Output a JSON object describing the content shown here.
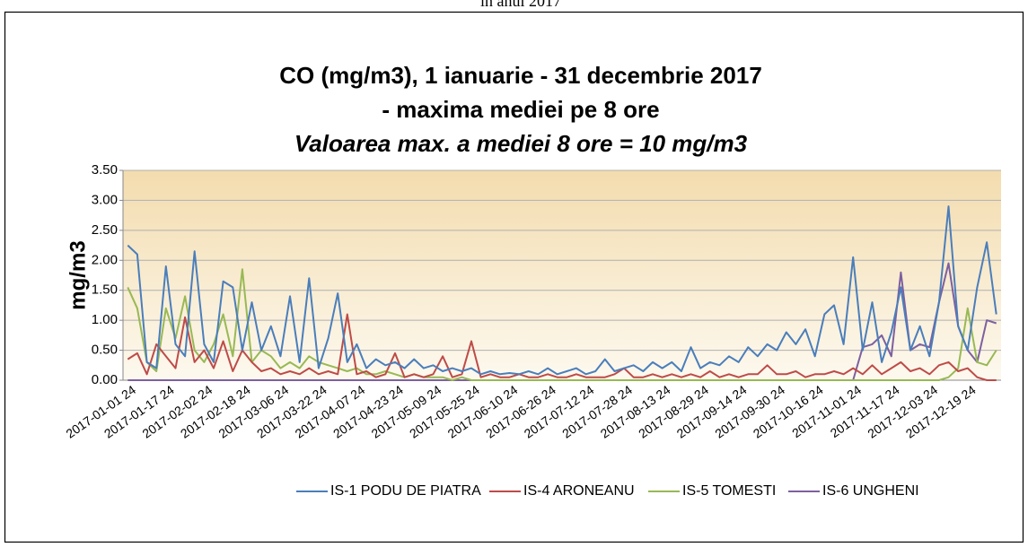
{
  "caption": "în anul 2017",
  "chart_data": {
    "type": "line",
    "title": "CO (mg/m3), 1 ianuarie - 31 decembrie 2017",
    "subtitle": "- maxima mediei pe 8 ore",
    "annotation": "Valoarea max. a mediei 8 ore = 10 mg/m3",
    "y_label": "mg/m3",
    "categories": [
      "2017-01-01 24",
      null,
      null,
      null,
      "2017-01-17 24",
      null,
      null,
      null,
      "2017-02-02 24",
      null,
      null,
      null,
      "2017-02-18 24",
      null,
      null,
      null,
      "2017-03-06 24",
      null,
      null,
      null,
      "2017-03-22 24",
      null,
      null,
      null,
      "2017-04-07 24",
      null,
      null,
      null,
      "2017-04-23 24",
      null,
      null,
      null,
      "2017-05-09 24",
      null,
      null,
      null,
      "2017-05-25 24",
      null,
      null,
      null,
      "2017-06-10 24",
      null,
      null,
      null,
      "2017-06-26 24",
      null,
      null,
      null,
      "2017-07-12 24",
      null,
      null,
      null,
      "2017-07-28 24",
      null,
      null,
      null,
      "2017-08-13 24",
      null,
      null,
      null,
      "2017-08-29 24",
      null,
      null,
      null,
      "2017-09-14 24",
      null,
      null,
      null,
      "2017-09-30 24",
      null,
      null,
      null,
      "2017-10-16 24",
      null,
      null,
      null,
      "2017-11-01 24",
      null,
      null,
      null,
      "2017-11-17 24",
      null,
      null,
      null,
      "2017-12-03 24",
      null,
      null,
      null,
      "2017-12-19 24",
      null,
      null,
      null
    ],
    "series": [
      {
        "name": "IS-1 PODU DE PIATRA",
        "color": "#4a7ebb",
        "values": [
          2.25,
          2.1,
          0.3,
          0.2,
          1.9,
          0.6,
          0.4,
          2.15,
          0.6,
          0.3,
          1.65,
          1.55,
          0.5,
          1.3,
          0.5,
          0.9,
          0.4,
          1.4,
          0.3,
          1.7,
          0.2,
          0.7,
          1.45,
          0.3,
          0.6,
          0.2,
          0.35,
          0.25,
          0.3,
          0.2,
          0.35,
          0.2,
          0.25,
          0.15,
          0.2,
          0.15,
          0.2,
          0.1,
          0.15,
          0.1,
          0.12,
          0.1,
          0.15,
          0.1,
          0.2,
          0.1,
          0.15,
          0.2,
          0.1,
          0.15,
          0.35,
          0.15,
          0.2,
          0.25,
          0.15,
          0.3,
          0.2,
          0.3,
          0.15,
          0.55,
          0.2,
          0.3,
          0.25,
          0.4,
          0.3,
          0.55,
          0.4,
          0.6,
          0.5,
          0.8,
          0.6,
          0.85,
          0.4,
          1.1,
          1.25,
          0.6,
          2.05,
          0.5,
          1.3,
          0.3,
          0.8,
          1.55,
          0.5,
          0.9,
          0.4,
          1.3,
          2.9,
          0.9,
          0.5,
          1.55,
          2.3,
          1.1
        ]
      },
      {
        "name": "IS-4 ARONEANU",
        "color": "#be4b48",
        "values": [
          0.35,
          0.45,
          0.1,
          0.6,
          0.4,
          0.2,
          1.05,
          0.3,
          0.5,
          0.2,
          0.65,
          0.15,
          0.5,
          0.3,
          0.15,
          0.2,
          0.1,
          0.15,
          0.1,
          0.2,
          0.1,
          0.15,
          0.1,
          1.1,
          0.1,
          0.15,
          0.05,
          0.1,
          0.45,
          0.05,
          0.1,
          0.05,
          0.1,
          0.4,
          0.05,
          0.1,
          0.65,
          0.05,
          0.1,
          0.05,
          0.05,
          0.1,
          0.05,
          0.05,
          0.1,
          0.05,
          0.05,
          0.1,
          0.05,
          0.05,
          0.05,
          0.1,
          0.2,
          0.05,
          0.05,
          0.1,
          0.05,
          0.1,
          0.05,
          0.1,
          0.05,
          0.15,
          0.05,
          0.1,
          0.05,
          0.1,
          0.1,
          0.25,
          0.1,
          0.1,
          0.15,
          0.05,
          0.1,
          0.1,
          0.15,
          0.1,
          0.2,
          0.1,
          0.25,
          0.1,
          0.2,
          0.3,
          0.15,
          0.2,
          0.1,
          0.25,
          0.3,
          0.15,
          0.2,
          0.05,
          0,
          0
        ]
      },
      {
        "name": "IS-5 TOMESTI",
        "color": "#98b954",
        "values": [
          1.55,
          1.2,
          0.3,
          0.15,
          1.2,
          0.7,
          1.4,
          0.5,
          0.3,
          0.6,
          1.1,
          0.4,
          1.85,
          0.3,
          0.5,
          0.4,
          0.2,
          0.3,
          0.2,
          0.4,
          0.3,
          0.25,
          0.2,
          0.15,
          0.2,
          0.1,
          0.1,
          0.15,
          0.1,
          0.05,
          0.1,
          0.05,
          0.05,
          0.05,
          0,
          0.05,
          0,
          0,
          0,
          0,
          0,
          0,
          0,
          0,
          0,
          0,
          0,
          0,
          0,
          0,
          0,
          0,
          0,
          0,
          0,
          0,
          0,
          0,
          0,
          0,
          0,
          0,
          0,
          0,
          0,
          0,
          0,
          0,
          0,
          0,
          0,
          0,
          0,
          0,
          0,
          0,
          0,
          0,
          0,
          0,
          0,
          0,
          0,
          0,
          0,
          0,
          0.05,
          0.2,
          1.2,
          0.3,
          0.25,
          0.5
        ]
      },
      {
        "name": "IS-6 UNGHENI",
        "color": "#7d60a0",
        "values": [
          0,
          0,
          0,
          0,
          0,
          0,
          0,
          0,
          0,
          0,
          0,
          0,
          0,
          0,
          0,
          0,
          0,
          0,
          0,
          0,
          0,
          0,
          0,
          0,
          0,
          0,
          0,
          0,
          0,
          0,
          0,
          0,
          0,
          0,
          0,
          0,
          0,
          0,
          0,
          0,
          0,
          0,
          0,
          0,
          0,
          0,
          0,
          0,
          0,
          0,
          0,
          0,
          0,
          0,
          0,
          0,
          0,
          0,
          0,
          0,
          0,
          0,
          0,
          0,
          0,
          0,
          0,
          0,
          0,
          0,
          0,
          0,
          0,
          0,
          0,
          0,
          0,
          0.55,
          0.6,
          0.75,
          0.4,
          1.8,
          0.5,
          0.6,
          0.55,
          1.3,
          1.95,
          0.9,
          0.5,
          0.3,
          1.0,
          0.95
        ]
      }
    ],
    "ylim": [
      0,
      3.5
    ],
    "yticks": [
      {
        "value": 0,
        "label": "0.00"
      },
      {
        "value": 0.5,
        "label": "0.50"
      },
      {
        "value": 1,
        "label": "1.00"
      },
      {
        "value": 1.5,
        "label": "1.50"
      },
      {
        "value": 2,
        "label": "2.00"
      },
      {
        "value": 2.5,
        "label": "2.50"
      },
      {
        "value": 3,
        "label": "3.00"
      },
      {
        "value": 3.5,
        "label": "3.50"
      }
    ],
    "grid": true,
    "legend": "bottom"
  }
}
